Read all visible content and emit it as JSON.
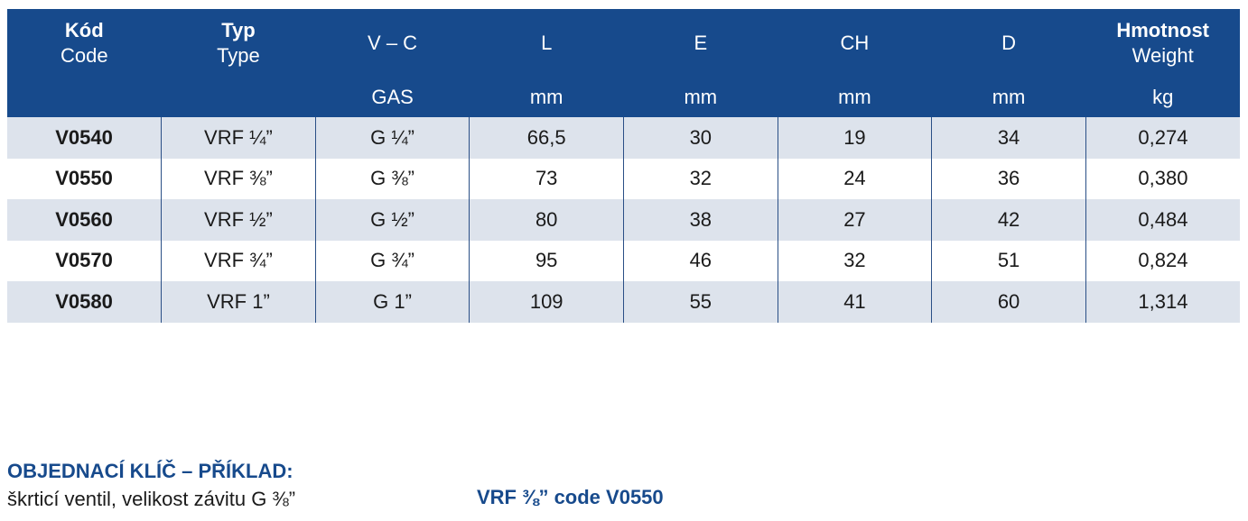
{
  "table": {
    "headers_top": [
      {
        "bold": "Kód",
        "normal": "Code"
      },
      {
        "bold": "Typ",
        "normal": "Type"
      },
      {
        "bold": "",
        "normal": "V – C"
      },
      {
        "bold": "",
        "normal": "L"
      },
      {
        "bold": "",
        "normal": "E"
      },
      {
        "bold": "",
        "normal": "CH"
      },
      {
        "bold": "",
        "normal": "D"
      },
      {
        "bold": "Hmotnost",
        "normal": "Weight"
      }
    ],
    "headers_units": [
      "",
      "",
      "GAS",
      "mm",
      "mm",
      "mm",
      "mm",
      "kg"
    ],
    "rows": [
      [
        "V0540",
        "VRF ¼”",
        "G ¼”",
        "66,5",
        "30",
        "19",
        "34",
        "0,274"
      ],
      [
        "V0550",
        "VRF ⅜”",
        "G ⅜”",
        "73",
        "32",
        "24",
        "36",
        "0,380"
      ],
      [
        "V0560",
        "VRF ½”",
        "G ½”",
        "80",
        "38",
        "27",
        "42",
        "0,484"
      ],
      [
        "V0570",
        "VRF ¾”",
        "G ¾”",
        "95",
        "46",
        "32",
        "51",
        "0,824"
      ],
      [
        "V0580",
        "VRF 1”",
        "G 1”",
        "109",
        "55",
        "41",
        "60",
        "1,314"
      ]
    ]
  },
  "order_key": {
    "title": "OBJEDNACÍ KLÍČ – PŘÍKLAD:",
    "description": "škrticí ventil, velikost závitu G ⅜”",
    "example_code": "VRF ⅜” code V0550"
  },
  "colors": {
    "header_bg": "#174a8c",
    "row_alt_bg": "#dde3ec",
    "accent_text": "#174a8c"
  }
}
